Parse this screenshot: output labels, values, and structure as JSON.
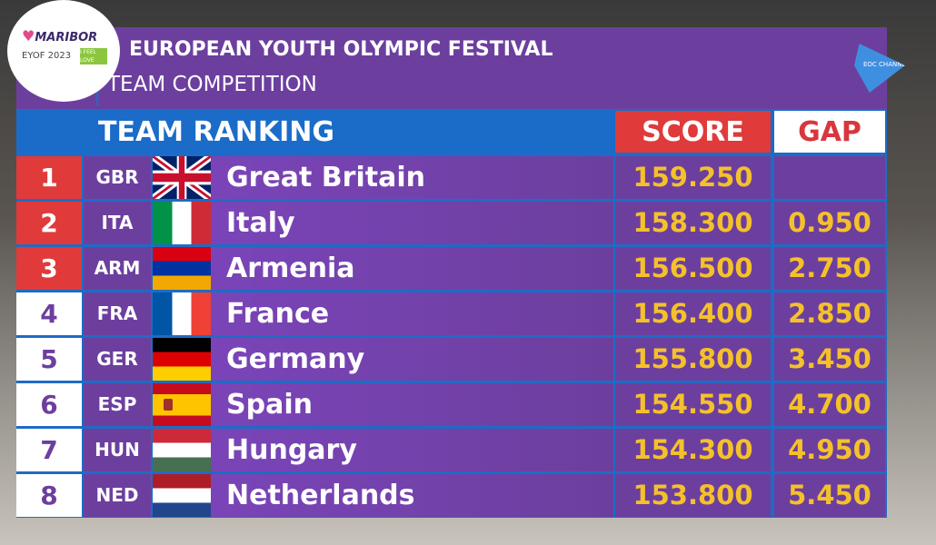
{
  "logo": {
    "text": "MARIBOR",
    "sub": "EYOF 2023",
    "tag": "I FEEL LOVE"
  },
  "channel_logo": "EOC CHANNEL",
  "header": {
    "title": "EUROPEAN YOUTH OLYMPIC FESTIVAL",
    "subtitle": "TEAM COMPETITION"
  },
  "table": {
    "title": "TEAM RANKING",
    "score_label": "SCORE",
    "gap_label": "GAP",
    "rows": [
      {
        "rank": "1",
        "code": "GBR",
        "country": "Great Britain",
        "score": "159.250",
        "gap": "",
        "medal": true
      },
      {
        "rank": "2",
        "code": "ITA",
        "country": "Italy",
        "score": "158.300",
        "gap": "0.950",
        "medal": true
      },
      {
        "rank": "3",
        "code": "ARM",
        "country": "Armenia",
        "score": "156.500",
        "gap": "2.750",
        "medal": true
      },
      {
        "rank": "4",
        "code": "FRA",
        "country": "France",
        "score": "156.400",
        "gap": "2.850",
        "medal": false
      },
      {
        "rank": "5",
        "code": "GER",
        "country": "Germany",
        "score": "155.800",
        "gap": "3.450",
        "medal": false
      },
      {
        "rank": "6",
        "code": "ESP",
        "country": "Spain",
        "score": "154.550",
        "gap": "4.700",
        "medal": false
      },
      {
        "rank": "7",
        "code": "HUN",
        "country": "Hungary",
        "score": "154.300",
        "gap": "4.950",
        "medal": false
      },
      {
        "rank": "8",
        "code": "NED",
        "country": "Netherlands",
        "score": "153.800",
        "gap": "5.450",
        "medal": false
      }
    ]
  },
  "colors": {
    "purple": "#6c3f9e",
    "blue": "#1f6bc4",
    "red": "#e03a3a",
    "gold": "#f5c12a"
  }
}
